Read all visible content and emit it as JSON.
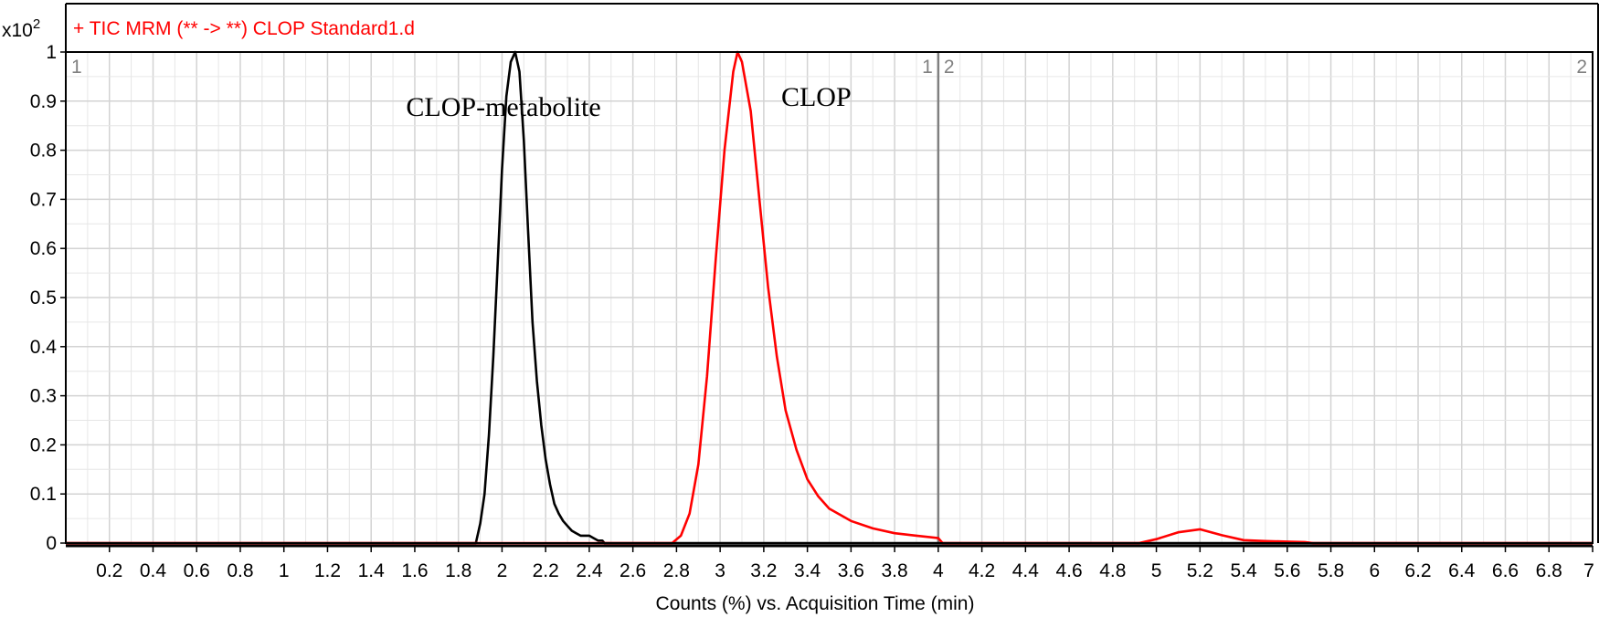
{
  "chart_data": {
    "type": "line",
    "title": "+ TIC MRM (** -> **) CLOP Standard1.d",
    "y_multiplier": "x10",
    "y_multiplier_exp": "2",
    "xlabel": "Counts (%) vs. Acquisition Time (min)",
    "ylabel": "",
    "xlim": [
      0,
      7
    ],
    "ylim": [
      0,
      1
    ],
    "grid": true,
    "x_ticks": [
      0.2,
      0.4,
      0.6,
      0.8,
      1,
      1.2,
      1.4,
      1.6,
      1.8,
      2,
      2.2,
      2.4,
      2.6,
      2.8,
      3,
      3.2,
      3.4,
      3.6,
      3.8,
      4,
      4.2,
      4.4,
      4.6,
      4.8,
      5,
      5.2,
      5.4,
      5.6,
      5.8,
      6,
      6.2,
      6.4,
      6.6,
      6.8,
      7
    ],
    "x_tick_labels": [
      "0.2",
      "0.4",
      "0.6",
      "0.8",
      "1",
      "1.2",
      "1.4",
      "1.6",
      "1.8",
      "2",
      "2.2",
      "2.4",
      "2.6",
      "2.8",
      "3",
      "3.2",
      "3.4",
      "3.6",
      "3.8",
      "4",
      "4.2",
      "4.4",
      "4.6",
      "4.8",
      "5",
      "5.2",
      "5.4",
      "5.6",
      "5.8",
      "6",
      "6.2",
      "6.4",
      "6.6",
      "6.8",
      "7"
    ],
    "y_ticks": [
      0,
      0.1,
      0.2,
      0.3,
      0.4,
      0.5,
      0.6,
      0.7,
      0.8,
      0.9,
      1
    ],
    "y_tick_labels": [
      "0",
      "0.1",
      "0.2",
      "0.3",
      "0.4",
      "0.5",
      "0.6",
      "0.7",
      "0.8",
      "0.9",
      "1"
    ],
    "segment_divider_x": 4,
    "segment_labels": [
      {
        "text": "1",
        "x": 0,
        "anchor": "start"
      },
      {
        "text": "1",
        "x": 4,
        "anchor": "end"
      },
      {
        "text": "2",
        "x": 4,
        "anchor": "start"
      },
      {
        "text": "2",
        "x": 7,
        "anchor": "end"
      }
    ],
    "annotations": [
      {
        "text": "CLOP-metabolite",
        "x": 1.56,
        "y": 0.87
      },
      {
        "text": "CLOP",
        "x": 3.28,
        "y": 0.89
      }
    ],
    "series": [
      {
        "color": "#000000",
        "x": [
          0.0,
          1.88,
          1.9,
          1.92,
          1.94,
          1.96,
          1.98,
          2.0,
          2.02,
          2.04,
          2.06,
          2.08,
          2.1,
          2.12,
          2.14,
          2.16,
          2.18,
          2.2,
          2.22,
          2.24,
          2.26,
          2.28,
          2.3,
          2.32,
          2.34,
          2.36,
          2.38,
          2.4,
          2.42,
          2.44,
          2.46,
          2.47,
          4.0,
          7.0
        ],
        "y": [
          0.0,
          0.0,
          0.04,
          0.1,
          0.22,
          0.38,
          0.57,
          0.76,
          0.91,
          0.98,
          1.0,
          0.96,
          0.82,
          0.63,
          0.45,
          0.33,
          0.24,
          0.17,
          0.12,
          0.08,
          0.06,
          0.045,
          0.035,
          0.025,
          0.02,
          0.015,
          0.015,
          0.015,
          0.01,
          0.005,
          0.005,
          0.0,
          0.0,
          0.0
        ]
      },
      {
        "color": "#ff0000",
        "x": [
          0.0,
          2.78,
          2.82,
          2.86,
          2.9,
          2.94,
          2.98,
          3.02,
          3.06,
          3.08,
          3.1,
          3.14,
          3.18,
          3.22,
          3.26,
          3.3,
          3.35,
          3.4,
          3.45,
          3.5,
          3.6,
          3.7,
          3.8,
          3.9,
          4.0,
          4.02,
          4.92,
          5.0,
          5.1,
          5.2,
          5.3,
          5.4,
          5.5,
          5.6,
          5.68,
          5.72,
          7.0
        ],
        "y": [
          0.0,
          0.0,
          0.015,
          0.06,
          0.16,
          0.34,
          0.58,
          0.8,
          0.96,
          1.0,
          0.98,
          0.88,
          0.7,
          0.52,
          0.38,
          0.27,
          0.19,
          0.13,
          0.095,
          0.07,
          0.045,
          0.03,
          0.02,
          0.015,
          0.01,
          0.0,
          0.0,
          0.008,
          0.022,
          0.028,
          0.016,
          0.006,
          0.004,
          0.003,
          0.002,
          0.0,
          0.0
        ]
      }
    ]
  }
}
